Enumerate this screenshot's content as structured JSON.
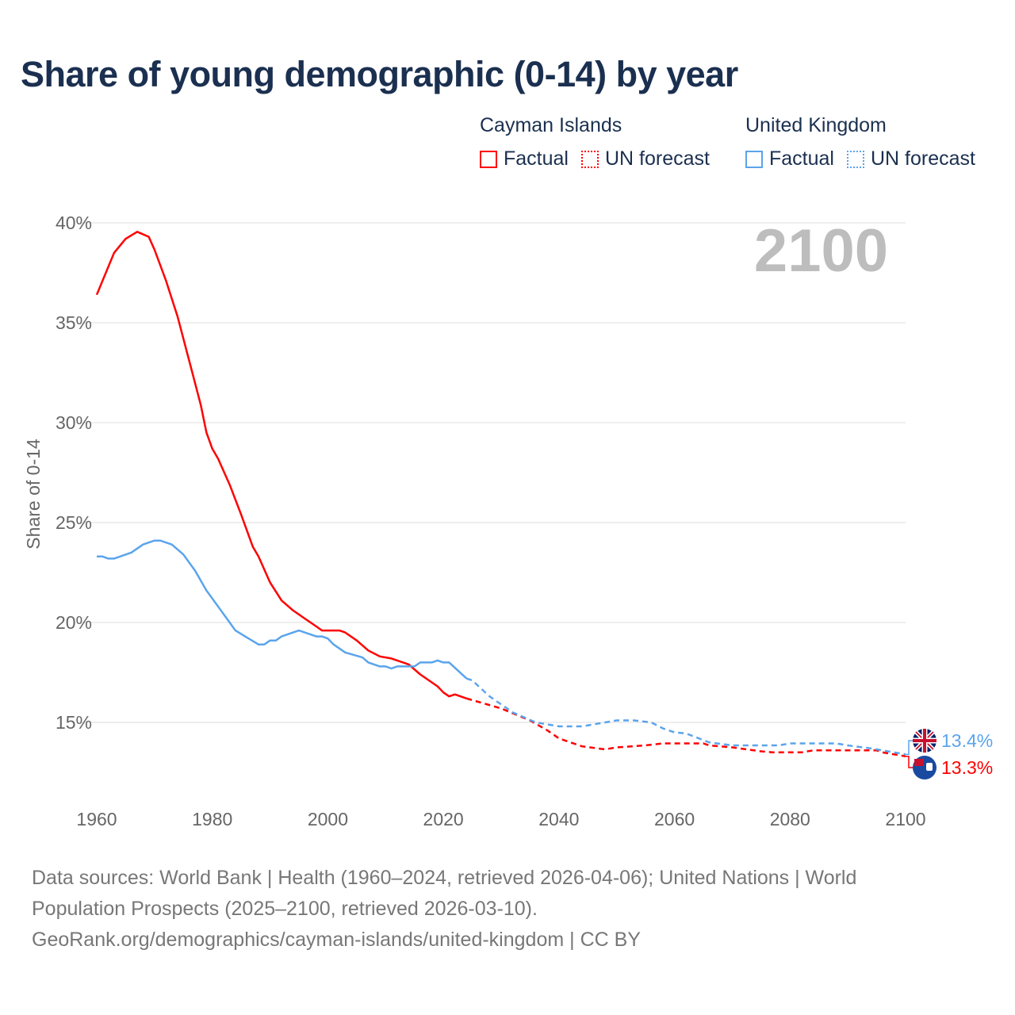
{
  "chart_data": {
    "type": "line",
    "title": "Share of young demographic (0-14) by year",
    "ylabel": "Share of 0-14",
    "xlabel": "",
    "xlim": [
      1960,
      2100
    ],
    "ylim": [
      11.0,
      40.0
    ],
    "x_ticks": [
      "1960",
      "1980",
      "2000",
      "2020",
      "2040",
      "2060",
      "2080",
      "2100"
    ],
    "y_ticks": [
      {
        "v": 40,
        "label": "40%"
      },
      {
        "v": 35,
        "label": "35%"
      },
      {
        "v": 30,
        "label": "30%"
      },
      {
        "v": 25,
        "label": "25%"
      },
      {
        "v": 20,
        "label": "20%"
      },
      {
        "v": 15,
        "label": "15%"
      }
    ],
    "grid": true,
    "year_label": "2100",
    "forecast_start": 2024,
    "legend": {
      "placement": "top-right",
      "groups": [
        {
          "name": "Cayman Islands",
          "color": "#ff0000",
          "factual": "Factual",
          "forecast": "UN forecast"
        },
        {
          "name": "United Kingdom",
          "color": "#5ba4ec",
          "factual": "Factual",
          "forecast": "UN forecast"
        }
      ]
    },
    "series": [
      {
        "name": "Cayman Islands",
        "color": "#ff0000",
        "end_label": "13.3%",
        "flag": "cayman-islands-flag",
        "points": [
          [
            1960,
            36.4
          ],
          [
            1963,
            38.5
          ],
          [
            1965,
            39.2
          ],
          [
            1967,
            39.55
          ],
          [
            1969,
            39.3
          ],
          [
            1970,
            38.65
          ],
          [
            1972,
            37.1
          ],
          [
            1974,
            35.3
          ],
          [
            1976,
            33.1
          ],
          [
            1978,
            30.9
          ],
          [
            1979,
            29.5
          ],
          [
            1980,
            28.7
          ],
          [
            1981,
            28.2
          ],
          [
            1983,
            26.9
          ],
          [
            1985,
            25.4
          ],
          [
            1987,
            23.8
          ],
          [
            1988,
            23.3
          ],
          [
            1990,
            22.0
          ],
          [
            1992,
            21.1
          ],
          [
            1994,
            20.6
          ],
          [
            1996,
            20.2
          ],
          [
            1998,
            19.8
          ],
          [
            1999,
            19.6
          ],
          [
            2002,
            19.6
          ],
          [
            2003,
            19.5
          ],
          [
            2005,
            19.1
          ],
          [
            2007,
            18.6
          ],
          [
            2009,
            18.3
          ],
          [
            2011,
            18.2
          ],
          [
            2014,
            17.9
          ],
          [
            2016,
            17.4
          ],
          [
            2019,
            16.8
          ],
          [
            2020,
            16.5
          ],
          [
            2021,
            16.3
          ],
          [
            2022,
            16.4
          ],
          [
            2024,
            16.2
          ],
          [
            2030,
            15.7
          ],
          [
            2035,
            15.1
          ],
          [
            2038,
            14.6
          ],
          [
            2040,
            14.2
          ],
          [
            2044,
            13.8
          ],
          [
            2048,
            13.65
          ],
          [
            2050,
            13.75
          ],
          [
            2055,
            13.85
          ],
          [
            2058,
            13.95
          ],
          [
            2065,
            13.95
          ],
          [
            2066,
            13.85
          ],
          [
            2070,
            13.75
          ],
          [
            2075,
            13.55
          ],
          [
            2077,
            13.5
          ],
          [
            2082,
            13.5
          ],
          [
            2084,
            13.6
          ],
          [
            2095,
            13.6
          ],
          [
            2096,
            13.5
          ],
          [
            2100,
            13.3
          ]
        ]
      },
      {
        "name": "United Kingdom",
        "color": "#5ba4ec",
        "end_label": "13.4%",
        "flag": "united-kingdom-flag",
        "points": [
          [
            1960,
            23.3
          ],
          [
            1961,
            23.3
          ],
          [
            1962,
            23.2
          ],
          [
            1963,
            23.2
          ],
          [
            1966,
            23.5
          ],
          [
            1968,
            23.9
          ],
          [
            1970,
            24.1
          ],
          [
            1971,
            24.1
          ],
          [
            1973,
            23.9
          ],
          [
            1975,
            23.4
          ],
          [
            1977,
            22.6
          ],
          [
            1979,
            21.6
          ],
          [
            1981,
            20.8
          ],
          [
            1983,
            20.0
          ],
          [
            1984,
            19.6
          ],
          [
            1986,
            19.25
          ],
          [
            1988,
            18.9
          ],
          [
            1989,
            18.9
          ],
          [
            1990,
            19.1
          ],
          [
            1991,
            19.1
          ],
          [
            1992,
            19.3
          ],
          [
            1994,
            19.5
          ],
          [
            1995,
            19.6
          ],
          [
            1997,
            19.4
          ],
          [
            1998,
            19.3
          ],
          [
            1999,
            19.3
          ],
          [
            2000,
            19.2
          ],
          [
            2001,
            18.9
          ],
          [
            2003,
            18.5
          ],
          [
            2006,
            18.25
          ],
          [
            2007,
            18.0
          ],
          [
            2009,
            17.8
          ],
          [
            2010,
            17.8
          ],
          [
            2011,
            17.7
          ],
          [
            2012,
            17.8
          ],
          [
            2015,
            17.8
          ],
          [
            2016,
            18.0
          ],
          [
            2018,
            18.0
          ],
          [
            2019,
            18.1
          ],
          [
            2020,
            18.0
          ],
          [
            2021,
            18.0
          ],
          [
            2024,
            17.2
          ],
          [
            2025,
            17.1
          ],
          [
            2028,
            16.3
          ],
          [
            2032,
            15.5
          ],
          [
            2036,
            15.0
          ],
          [
            2040,
            14.8
          ],
          [
            2044,
            14.8
          ],
          [
            2046,
            14.9
          ],
          [
            2048,
            15.0
          ],
          [
            2050,
            15.1
          ],
          [
            2053,
            15.1
          ],
          [
            2056,
            15.0
          ],
          [
            2058,
            14.7
          ],
          [
            2060,
            14.5
          ],
          [
            2062,
            14.45
          ],
          [
            2066,
            14.0
          ],
          [
            2070,
            13.85
          ],
          [
            2078,
            13.85
          ],
          [
            2080,
            13.95
          ],
          [
            2088,
            13.95
          ],
          [
            2090,
            13.85
          ],
          [
            2094,
            13.7
          ],
          [
            2100,
            13.4
          ]
        ]
      }
    ]
  },
  "footer": {
    "line1": "Data sources: World Bank | Health (1960–2024, retrieved 2026-04-06); United Nations | World",
    "line2": "Population Prospects (2025–2100, retrieved 2026-03-10).",
    "line3": "GeoRank.org/demographics/cayman-islands/united-kingdom | CC BY"
  }
}
